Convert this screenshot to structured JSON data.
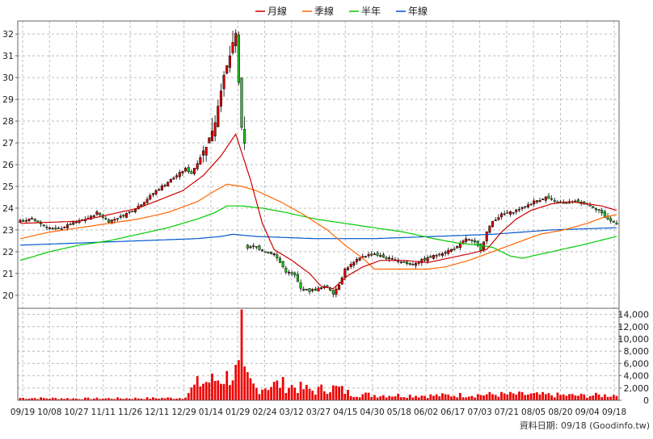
{
  "chart_data": {
    "type": "candlestick",
    "legend": [
      {
        "name": "月線",
        "color": "#cc0000"
      },
      {
        "name": "季線",
        "color": "#ff6600"
      },
      {
        "name": "半年",
        "color": "#00cc00"
      },
      {
        "name": "年線",
        "color": "#0055cc"
      }
    ],
    "legend_position": "top-center",
    "grid": true,
    "price_axis": {
      "ylim": [
        19.4,
        32.6
      ],
      "ticks": [
        20,
        21,
        22,
        23,
        24,
        25,
        26,
        27,
        28,
        29,
        30,
        31,
        32
      ],
      "side": "left"
    },
    "volume_axis": {
      "ylim": [
        0,
        15000
      ],
      "ticks": [
        "14,000",
        "12,000",
        "10,000",
        "8,000",
        "6,000",
        "4,000",
        "2,000",
        "0"
      ],
      "tick_values": [
        14000,
        12000,
        10000,
        8000,
        6000,
        4000,
        2000,
        0
      ],
      "side": "right"
    },
    "x_labels": [
      "09/19",
      "10/08",
      "10/27",
      "11/11",
      "11/26",
      "12/11",
      "12/29",
      "01/14",
      "01/29",
      "02/24",
      "03/12",
      "03/27",
      "04/15",
      "04/30",
      "05/18",
      "06/02",
      "06/17",
      "07/03",
      "07/21",
      "08/05",
      "08/20",
      "09/04",
      "09/18"
    ],
    "price_anchors": [
      [
        0,
        23.4
      ],
      [
        4,
        23.5
      ],
      [
        8,
        23.2
      ],
      [
        12,
        23.0
      ],
      [
        16,
        23.2
      ],
      [
        20,
        23.4
      ],
      [
        24,
        23.6
      ],
      [
        26,
        23.8
      ],
      [
        30,
        23.4
      ],
      [
        34,
        23.6
      ],
      [
        38,
        23.9
      ],
      [
        42,
        24.3
      ],
      [
        46,
        24.8
      ],
      [
        52,
        25.4
      ],
      [
        56,
        25.8
      ],
      [
        58,
        25.6
      ],
      [
        62,
        26.6
      ],
      [
        64,
        27.2
      ],
      [
        66,
        28.0
      ],
      [
        68,
        29.5
      ],
      [
        70,
        30.5
      ],
      [
        72,
        31.5
      ],
      [
        73,
        32.0
      ],
      [
        75,
        27.6
      ],
      [
        76,
        26.9
      ],
      [
        77,
        22.2
      ],
      [
        80,
        22.2
      ],
      [
        83,
        22.0
      ],
      [
        86,
        21.9
      ],
      [
        88,
        21.5
      ],
      [
        90,
        21.1
      ],
      [
        93,
        20.9
      ],
      [
        95,
        20.3
      ],
      [
        98,
        20.2
      ],
      [
        101,
        20.3
      ],
      [
        104,
        20.4
      ],
      [
        106,
        20.1
      ],
      [
        108,
        20.5
      ],
      [
        110,
        21.2
      ],
      [
        113,
        21.5
      ],
      [
        116,
        21.8
      ],
      [
        120,
        21.9
      ],
      [
        124,
        21.7
      ],
      [
        128,
        21.6
      ],
      [
        132,
        21.4
      ],
      [
        136,
        21.6
      ],
      [
        140,
        21.8
      ],
      [
        144,
        22.0
      ],
      [
        148,
        22.2
      ],
      [
        151,
        22.6
      ],
      [
        154,
        22.4
      ],
      [
        156,
        22.1
      ],
      [
        158,
        22.9
      ],
      [
        160,
        23.4
      ],
      [
        163,
        23.7
      ],
      [
        166,
        23.8
      ],
      [
        170,
        24.0
      ],
      [
        174,
        24.3
      ],
      [
        178,
        24.5
      ],
      [
        181,
        24.3
      ],
      [
        184,
        24.2
      ],
      [
        188,
        24.3
      ],
      [
        192,
        24.2
      ],
      [
        196,
        23.9
      ],
      [
        198,
        23.6
      ],
      [
        200,
        23.4
      ],
      [
        202,
        23.3
      ]
    ],
    "ma_month": [
      [
        0,
        23.3
      ],
      [
        20,
        23.4
      ],
      [
        40,
        24.0
      ],
      [
        55,
        24.8
      ],
      [
        62,
        25.5
      ],
      [
        68,
        26.4
      ],
      [
        73,
        27.4
      ],
      [
        78,
        25.3
      ],
      [
        82,
        23.3
      ],
      [
        86,
        22.1
      ],
      [
        92,
        21.6
      ],
      [
        98,
        21.0
      ],
      [
        102,
        20.4
      ],
      [
        106,
        20.3
      ],
      [
        111,
        20.9
      ],
      [
        116,
        21.3
      ],
      [
        122,
        21.6
      ],
      [
        130,
        21.6
      ],
      [
        138,
        21.5
      ],
      [
        145,
        21.7
      ],
      [
        152,
        21.9
      ],
      [
        158,
        22.1
      ],
      [
        163,
        22.9
      ],
      [
        168,
        23.5
      ],
      [
        173,
        23.9
      ],
      [
        180,
        24.2
      ],
      [
        186,
        24.3
      ],
      [
        192,
        24.2
      ],
      [
        197,
        24.1
      ],
      [
        202,
        23.9
      ]
    ],
    "ma_quarter": [
      [
        0,
        22.6
      ],
      [
        10,
        22.9
      ],
      [
        20,
        23.1
      ],
      [
        30,
        23.3
      ],
      [
        40,
        23.5
      ],
      [
        50,
        23.8
      ],
      [
        60,
        24.3
      ],
      [
        66,
        24.8
      ],
      [
        70,
        25.1
      ],
      [
        75,
        25.0
      ],
      [
        80,
        24.8
      ],
      [
        88,
        24.3
      ],
      [
        96,
        23.7
      ],
      [
        104,
        23.0
      ],
      [
        110,
        22.3
      ],
      [
        116,
        21.7
      ],
      [
        120,
        21.2
      ],
      [
        130,
        21.2
      ],
      [
        138,
        21.2
      ],
      [
        144,
        21.3
      ],
      [
        152,
        21.6
      ],
      [
        160,
        22.0
      ],
      [
        168,
        22.4
      ],
      [
        176,
        22.8
      ],
      [
        184,
        23.0
      ],
      [
        192,
        23.3
      ],
      [
        198,
        23.6
      ],
      [
        202,
        23.7
      ]
    ],
    "ma_half": [
      [
        0,
        21.6
      ],
      [
        10,
        22.0
      ],
      [
        20,
        22.3
      ],
      [
        30,
        22.5
      ],
      [
        40,
        22.8
      ],
      [
        50,
        23.1
      ],
      [
        60,
        23.5
      ],
      [
        66,
        23.8
      ],
      [
        70,
        24.1
      ],
      [
        75,
        24.1
      ],
      [
        82,
        24.0
      ],
      [
        90,
        23.8
      ],
      [
        100,
        23.5
      ],
      [
        110,
        23.3
      ],
      [
        120,
        23.1
      ],
      [
        130,
        22.9
      ],
      [
        140,
        22.6
      ],
      [
        148,
        22.4
      ],
      [
        155,
        22.3
      ],
      [
        160,
        22.2
      ],
      [
        166,
        21.8
      ],
      [
        170,
        21.7
      ],
      [
        180,
        22.0
      ],
      [
        190,
        22.3
      ],
      [
        196,
        22.5
      ],
      [
        202,
        22.7
      ]
    ],
    "ma_year": [
      [
        0,
        22.3
      ],
      [
        20,
        22.4
      ],
      [
        40,
        22.5
      ],
      [
        60,
        22.6
      ],
      [
        68,
        22.7
      ],
      [
        72,
        22.8
      ],
      [
        80,
        22.7
      ],
      [
        100,
        22.6
      ],
      [
        120,
        22.6
      ],
      [
        140,
        22.7
      ],
      [
        160,
        22.8
      ],
      [
        180,
        23.0
      ],
      [
        202,
        23.1
      ]
    ],
    "volume_profile": [
      [
        0,
        400
      ],
      [
        20,
        300
      ],
      [
        40,
        350
      ],
      [
        55,
        400
      ],
      [
        60,
        2800
      ],
      [
        66,
        3500
      ],
      [
        70,
        4000
      ],
      [
        72,
        4500
      ],
      [
        74,
        5000
      ],
      [
        76,
        4000
      ],
      [
        78,
        3000
      ],
      [
        80,
        2000
      ],
      [
        84,
        2500
      ],
      [
        88,
        2800
      ],
      [
        92,
        2400
      ],
      [
        96,
        2000
      ],
      [
        100,
        1600
      ],
      [
        104,
        2200
      ],
      [
        108,
        2000
      ],
      [
        112,
        1100
      ],
      [
        120,
        900
      ],
      [
        130,
        850
      ],
      [
        140,
        800
      ],
      [
        150,
        900
      ],
      [
        160,
        1000
      ],
      [
        170,
        1000
      ],
      [
        180,
        900
      ],
      [
        190,
        800
      ],
      [
        202,
        900
      ]
    ],
    "volume_spike": {
      "index": 75,
      "value": 14800
    },
    "source_note": "資料日期: 09/18 (Goodinfo.tw)"
  }
}
